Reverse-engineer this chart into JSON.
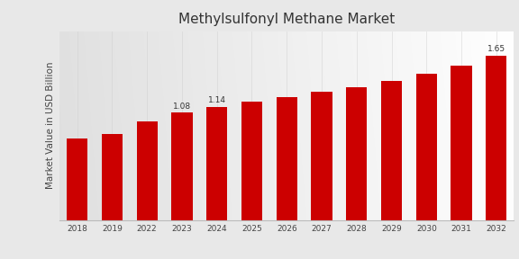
{
  "title": "Methylsulfonyl Methane Market",
  "ylabel": "Market Value in USD Billion",
  "categories": [
    "2018",
    "2019",
    "2022",
    "2023",
    "2024",
    "2025",
    "2026",
    "2027",
    "2028",
    "2029",
    "2030",
    "2031",
    "2032"
  ],
  "values": [
    0.82,
    0.87,
    0.99,
    1.08,
    1.14,
    1.19,
    1.24,
    1.29,
    1.34,
    1.4,
    1.47,
    1.55,
    1.65
  ],
  "bar_color": "#cc0000",
  "bar_annotations": {
    "2023": "1.08",
    "2024": "1.14",
    "2032": "1.65"
  },
  "annotation_fontsize": 6.5,
  "title_fontsize": 11,
  "ylabel_fontsize": 7.5,
  "ylim": [
    0,
    1.9
  ],
  "tick_fontsize": 6.5,
  "bg_color": "#e8e8e8",
  "bottom_bar_color": "#cc0000"
}
